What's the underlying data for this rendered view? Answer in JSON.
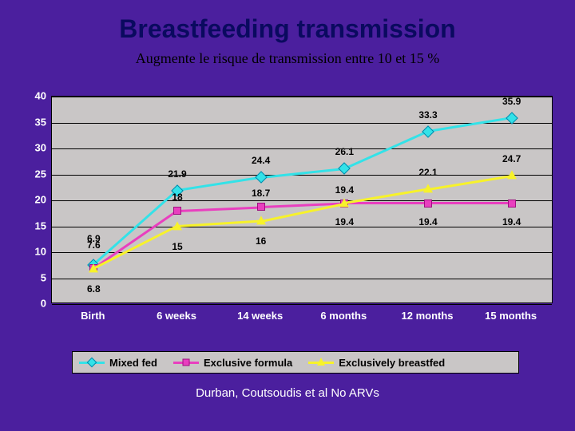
{
  "title": "Breastfeeding transmission",
  "subtitle": "Augmente le risque de transmission entre 10 et 15 %",
  "footer": "Durban, Coutsoudis et al   No ARVs",
  "background_color": "#4b1f9e",
  "chart": {
    "type": "line",
    "plot_bg": "#c9c6c6",
    "grid_color": "#000000",
    "ylim": [
      0,
      40
    ],
    "ytick_step": 5,
    "yticks": [
      0,
      5,
      10,
      15,
      20,
      25,
      30,
      35,
      40
    ],
    "categories": [
      "Birth",
      "6 weeks",
      "14 weeks",
      "6 months",
      "12 months",
      "15 months"
    ],
    "axis_label_color": "#ffffff",
    "axis_label_fontsize": 13,
    "value_label_fontsize": 12,
    "line_width": 3,
    "series": [
      {
        "name": "Mixed fed",
        "color": "#33e2e8",
        "marker": "diamond",
        "values": [
          7.6,
          21.9,
          24.4,
          26.1,
          33.3,
          35.9
        ],
        "label_dy": [
          -18,
          -14,
          -14,
          -14,
          -14,
          -14
        ]
      },
      {
        "name": "Exclusive formula",
        "color": "#e93fbf",
        "marker": "square",
        "values": [
          6.9,
          18,
          18.7,
          19.4,
          19.4,
          19.4
        ],
        "label_dy": [
          -30,
          -10,
          -10,
          16,
          16,
          16
        ]
      },
      {
        "name": "Exclusively breastfed",
        "color": "#f7f22a",
        "marker": "triangle",
        "values": [
          6.8,
          15,
          16,
          19.4,
          22.1,
          24.7
        ],
        "label_dy": [
          18,
          18,
          18,
          -10,
          -14,
          -14
        ]
      }
    ],
    "legend": {
      "items": [
        "Mixed fed",
        "Exclusive formula",
        "Exclusively breastfed"
      ]
    }
  }
}
